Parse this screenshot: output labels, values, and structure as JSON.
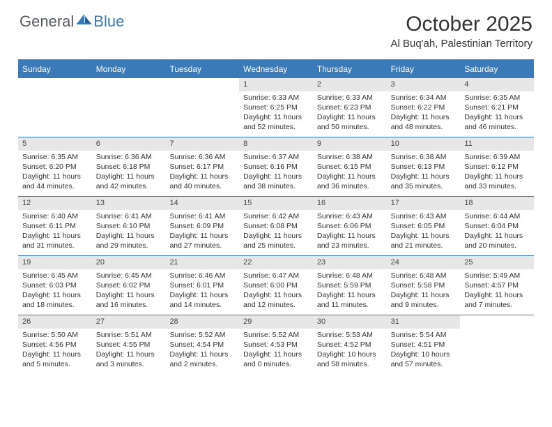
{
  "logo": {
    "general": "General",
    "blue": "Blue"
  },
  "title": "October 2025",
  "subtitle": "Al Buq'ah, Palestinian Territory",
  "colors": {
    "header_bar": "#3a7ab8",
    "day_number_bg": "#e7e7e7",
    "text": "#333333",
    "logo_gray": "#555b61",
    "logo_blue": "#3a7ab8"
  },
  "weekdays": [
    "Sunday",
    "Monday",
    "Tuesday",
    "Wednesday",
    "Thursday",
    "Friday",
    "Saturday"
  ],
  "weeks": [
    [
      {
        "n": "",
        "sunrise": "",
        "sunset": "",
        "daylight": ""
      },
      {
        "n": "",
        "sunrise": "",
        "sunset": "",
        "daylight": ""
      },
      {
        "n": "",
        "sunrise": "",
        "sunset": "",
        "daylight": ""
      },
      {
        "n": "1",
        "sunrise": "Sunrise: 6:33 AM",
        "sunset": "Sunset: 6:25 PM",
        "daylight": "Daylight: 11 hours and 52 minutes."
      },
      {
        "n": "2",
        "sunrise": "Sunrise: 6:33 AM",
        "sunset": "Sunset: 6:23 PM",
        "daylight": "Daylight: 11 hours and 50 minutes."
      },
      {
        "n": "3",
        "sunrise": "Sunrise: 6:34 AM",
        "sunset": "Sunset: 6:22 PM",
        "daylight": "Daylight: 11 hours and 48 minutes."
      },
      {
        "n": "4",
        "sunrise": "Sunrise: 6:35 AM",
        "sunset": "Sunset: 6:21 PM",
        "daylight": "Daylight: 11 hours and 46 minutes."
      }
    ],
    [
      {
        "n": "5",
        "sunrise": "Sunrise: 6:35 AM",
        "sunset": "Sunset: 6:20 PM",
        "daylight": "Daylight: 11 hours and 44 minutes."
      },
      {
        "n": "6",
        "sunrise": "Sunrise: 6:36 AM",
        "sunset": "Sunset: 6:18 PM",
        "daylight": "Daylight: 11 hours and 42 minutes."
      },
      {
        "n": "7",
        "sunrise": "Sunrise: 6:36 AM",
        "sunset": "Sunset: 6:17 PM",
        "daylight": "Daylight: 11 hours and 40 minutes."
      },
      {
        "n": "8",
        "sunrise": "Sunrise: 6:37 AM",
        "sunset": "Sunset: 6:16 PM",
        "daylight": "Daylight: 11 hours and 38 minutes."
      },
      {
        "n": "9",
        "sunrise": "Sunrise: 6:38 AM",
        "sunset": "Sunset: 6:15 PM",
        "daylight": "Daylight: 11 hours and 36 minutes."
      },
      {
        "n": "10",
        "sunrise": "Sunrise: 6:38 AM",
        "sunset": "Sunset: 6:13 PM",
        "daylight": "Daylight: 11 hours and 35 minutes."
      },
      {
        "n": "11",
        "sunrise": "Sunrise: 6:39 AM",
        "sunset": "Sunset: 6:12 PM",
        "daylight": "Daylight: 11 hours and 33 minutes."
      }
    ],
    [
      {
        "n": "12",
        "sunrise": "Sunrise: 6:40 AM",
        "sunset": "Sunset: 6:11 PM",
        "daylight": "Daylight: 11 hours and 31 minutes."
      },
      {
        "n": "13",
        "sunrise": "Sunrise: 6:41 AM",
        "sunset": "Sunset: 6:10 PM",
        "daylight": "Daylight: 11 hours and 29 minutes."
      },
      {
        "n": "14",
        "sunrise": "Sunrise: 6:41 AM",
        "sunset": "Sunset: 6:09 PM",
        "daylight": "Daylight: 11 hours and 27 minutes."
      },
      {
        "n": "15",
        "sunrise": "Sunrise: 6:42 AM",
        "sunset": "Sunset: 6:08 PM",
        "daylight": "Daylight: 11 hours and 25 minutes."
      },
      {
        "n": "16",
        "sunrise": "Sunrise: 6:43 AM",
        "sunset": "Sunset: 6:06 PM",
        "daylight": "Daylight: 11 hours and 23 minutes."
      },
      {
        "n": "17",
        "sunrise": "Sunrise: 6:43 AM",
        "sunset": "Sunset: 6:05 PM",
        "daylight": "Daylight: 11 hours and 21 minutes."
      },
      {
        "n": "18",
        "sunrise": "Sunrise: 6:44 AM",
        "sunset": "Sunset: 6:04 PM",
        "daylight": "Daylight: 11 hours and 20 minutes."
      }
    ],
    [
      {
        "n": "19",
        "sunrise": "Sunrise: 6:45 AM",
        "sunset": "Sunset: 6:03 PM",
        "daylight": "Daylight: 11 hours and 18 minutes."
      },
      {
        "n": "20",
        "sunrise": "Sunrise: 6:45 AM",
        "sunset": "Sunset: 6:02 PM",
        "daylight": "Daylight: 11 hours and 16 minutes."
      },
      {
        "n": "21",
        "sunrise": "Sunrise: 6:46 AM",
        "sunset": "Sunset: 6:01 PM",
        "daylight": "Daylight: 11 hours and 14 minutes."
      },
      {
        "n": "22",
        "sunrise": "Sunrise: 6:47 AM",
        "sunset": "Sunset: 6:00 PM",
        "daylight": "Daylight: 11 hours and 12 minutes."
      },
      {
        "n": "23",
        "sunrise": "Sunrise: 6:48 AM",
        "sunset": "Sunset: 5:59 PM",
        "daylight": "Daylight: 11 hours and 11 minutes."
      },
      {
        "n": "24",
        "sunrise": "Sunrise: 6:48 AM",
        "sunset": "Sunset: 5:58 PM",
        "daylight": "Daylight: 11 hours and 9 minutes."
      },
      {
        "n": "25",
        "sunrise": "Sunrise: 5:49 AM",
        "sunset": "Sunset: 4:57 PM",
        "daylight": "Daylight: 11 hours and 7 minutes."
      }
    ],
    [
      {
        "n": "26",
        "sunrise": "Sunrise: 5:50 AM",
        "sunset": "Sunset: 4:56 PM",
        "daylight": "Daylight: 11 hours and 5 minutes."
      },
      {
        "n": "27",
        "sunrise": "Sunrise: 5:51 AM",
        "sunset": "Sunset: 4:55 PM",
        "daylight": "Daylight: 11 hours and 3 minutes."
      },
      {
        "n": "28",
        "sunrise": "Sunrise: 5:52 AM",
        "sunset": "Sunset: 4:54 PM",
        "daylight": "Daylight: 11 hours and 2 minutes."
      },
      {
        "n": "29",
        "sunrise": "Sunrise: 5:52 AM",
        "sunset": "Sunset: 4:53 PM",
        "daylight": "Daylight: 11 hours and 0 minutes."
      },
      {
        "n": "30",
        "sunrise": "Sunrise: 5:53 AM",
        "sunset": "Sunset: 4:52 PM",
        "daylight": "Daylight: 10 hours and 58 minutes."
      },
      {
        "n": "31",
        "sunrise": "Sunrise: 5:54 AM",
        "sunset": "Sunset: 4:51 PM",
        "daylight": "Daylight: 10 hours and 57 minutes."
      },
      {
        "n": "",
        "sunrise": "",
        "sunset": "",
        "daylight": ""
      }
    ]
  ]
}
